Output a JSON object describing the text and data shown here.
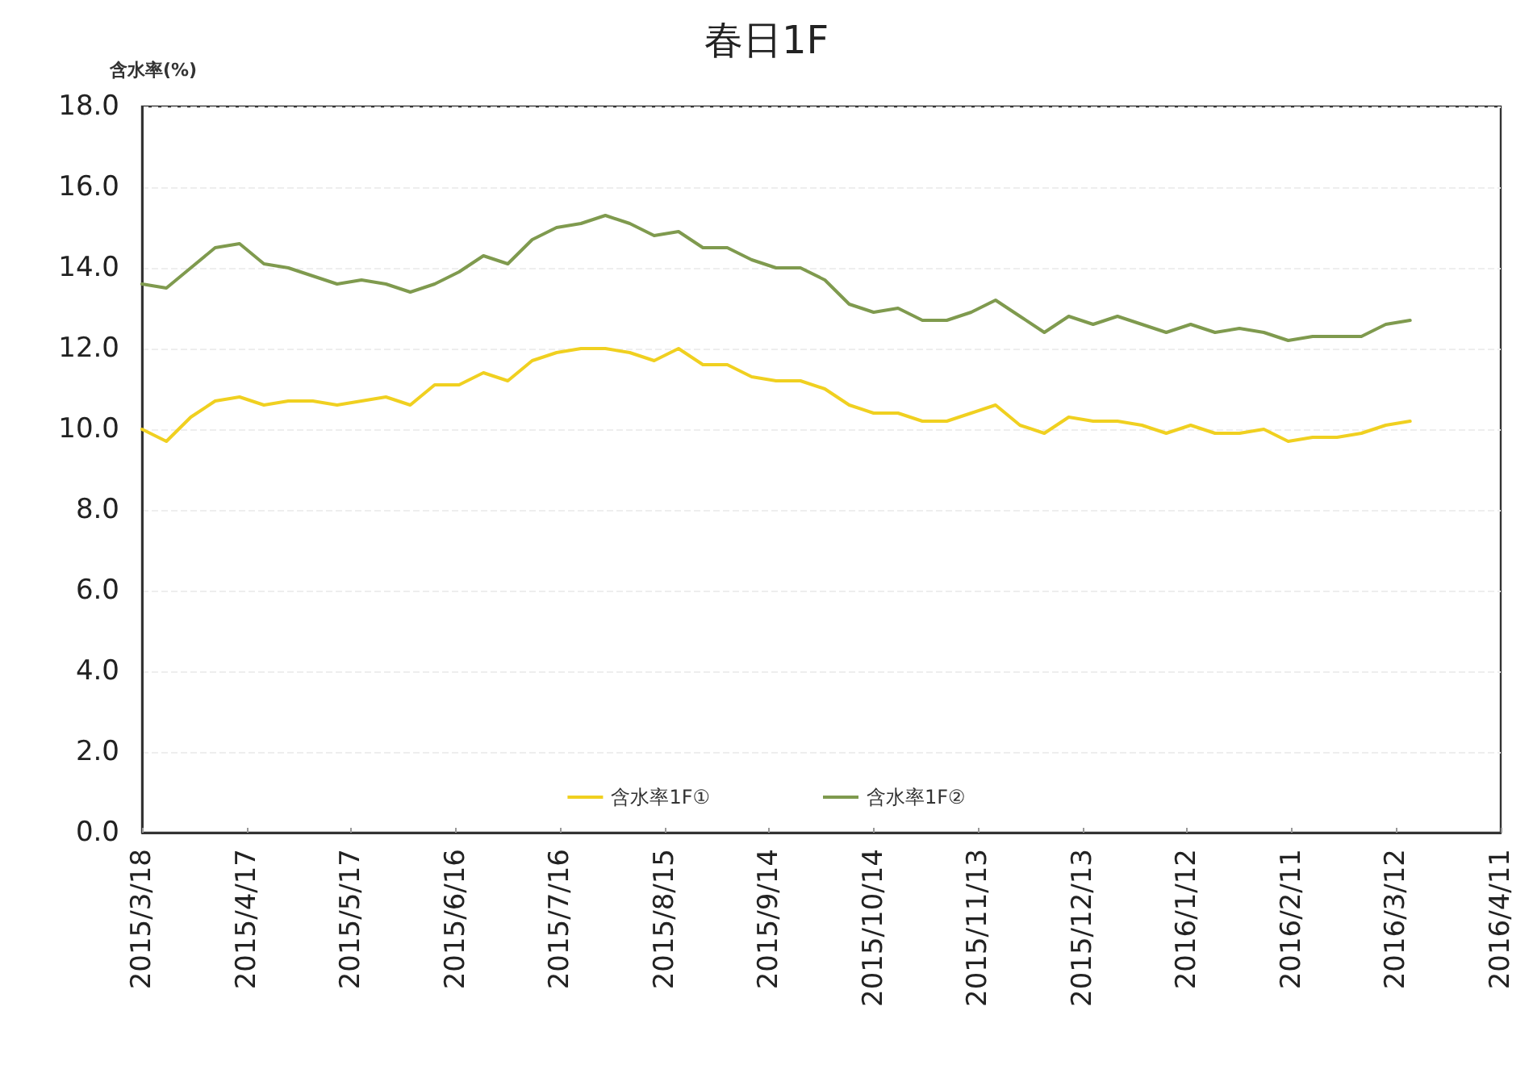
{
  "chart_data": {
    "type": "line",
    "title": "春日1F",
    "ylabel": "含水率(%)",
    "x": [
      "2015-03-18",
      "2015-03-25",
      "2015-04-01",
      "2015-04-08",
      "2015-04-15",
      "2015-04-22",
      "2015-04-29",
      "2015-05-06",
      "2015-05-13",
      "2015-05-20",
      "2015-05-27",
      "2015-06-03",
      "2015-06-10",
      "2015-06-17",
      "2015-06-24",
      "2015-07-01",
      "2015-07-08",
      "2015-07-15",
      "2015-07-22",
      "2015-07-29",
      "2015-08-05",
      "2015-08-12",
      "2015-08-19",
      "2015-08-26",
      "2015-09-02",
      "2015-09-09",
      "2015-09-16",
      "2015-09-23",
      "2015-09-30",
      "2015-10-07",
      "2015-10-14",
      "2015-10-21",
      "2015-10-28",
      "2015-11-04",
      "2015-11-11",
      "2015-11-18",
      "2015-11-25",
      "2015-12-02",
      "2015-12-09",
      "2015-12-16",
      "2015-12-23",
      "2015-12-30",
      "2016-01-06",
      "2016-01-13",
      "2016-01-20",
      "2016-01-27",
      "2016-02-03",
      "2016-02-10",
      "2016-02-17",
      "2016-02-24",
      "2016-03-02",
      "2016-03-09",
      "2016-03-16"
    ],
    "series": [
      {
        "name": "含水率1F①",
        "color": "#f0d020",
        "values": [
          10.0,
          9.7,
          10.3,
          10.7,
          10.8,
          10.6,
          10.7,
          10.7,
          10.6,
          10.7,
          10.8,
          10.6,
          11.1,
          11.1,
          11.4,
          11.2,
          11.7,
          11.9,
          12.0,
          12.0,
          11.9,
          11.7,
          12.0,
          11.6,
          11.6,
          11.3,
          11.2,
          11.2,
          11.0,
          10.6,
          10.4,
          10.4,
          10.2,
          10.2,
          10.4,
          10.6,
          10.1,
          9.9,
          10.3,
          10.2,
          10.2,
          10.1,
          9.9,
          10.1,
          9.9,
          9.9,
          10.0,
          9.7,
          9.8,
          9.8,
          9.9,
          10.1,
          10.2
        ]
      },
      {
        "name": "含水率1F②",
        "color": "#7f9a4e",
        "values": [
          13.6,
          13.5,
          14.0,
          14.5,
          14.6,
          14.1,
          14.0,
          13.8,
          13.6,
          13.7,
          13.6,
          13.4,
          13.6,
          13.9,
          14.3,
          14.1,
          14.7,
          15.0,
          15.1,
          15.3,
          15.1,
          14.8,
          14.9,
          14.5,
          14.5,
          14.2,
          14.0,
          14.0,
          13.7,
          13.1,
          12.9,
          13.0,
          12.7,
          12.7,
          12.9,
          13.2,
          12.8,
          12.4,
          12.8,
          12.6,
          12.8,
          12.6,
          12.4,
          12.6,
          12.4,
          12.5,
          12.4,
          12.2,
          12.3,
          12.3,
          12.3,
          12.6,
          12.7
        ]
      }
    ],
    "xlim": [
      "2015-03-18",
      "2016-04-11"
    ],
    "xticks": [
      {
        "value": "2015-03-18",
        "label": "2015/3/18"
      },
      {
        "value": "2015-04-17",
        "label": "2015/4/17"
      },
      {
        "value": "2015-05-17",
        "label": "2015/5/17"
      },
      {
        "value": "2015-06-16",
        "label": "2015/6/16"
      },
      {
        "value": "2015-07-16",
        "label": "2015/7/16"
      },
      {
        "value": "2015-08-15",
        "label": "2015/8/15"
      },
      {
        "value": "2015-09-14",
        "label": "2015/9/14"
      },
      {
        "value": "2015-10-14",
        "label": "2015/10/14"
      },
      {
        "value": "2015-11-13",
        "label": "2015/11/13"
      },
      {
        "value": "2015-12-13",
        "label": "2015/12/13"
      },
      {
        "value": "2016-01-12",
        "label": "2016/1/12"
      },
      {
        "value": "2016-02-11",
        "label": "2016/2/11"
      },
      {
        "value": "2016-03-12",
        "label": "2016/3/12"
      },
      {
        "value": "2016-04-11",
        "label": "2016/4/11"
      }
    ],
    "ylim": [
      0,
      18
    ],
    "yticks": [
      {
        "value": 0,
        "label": "0.0"
      },
      {
        "value": 2,
        "label": "2.0"
      },
      {
        "value": 4,
        "label": "4.0"
      },
      {
        "value": 6,
        "label": "6.0"
      },
      {
        "value": 8,
        "label": "8.0"
      },
      {
        "value": 10,
        "label": "10.0"
      },
      {
        "value": 12,
        "label": "12.0"
      },
      {
        "value": 14,
        "label": "14.0"
      },
      {
        "value": 16,
        "label": "16.0"
      },
      {
        "value": 18,
        "label": "18.0"
      }
    ],
    "grid": "y",
    "legend": "bottom",
    "marker": "none",
    "line_style": "solid"
  }
}
